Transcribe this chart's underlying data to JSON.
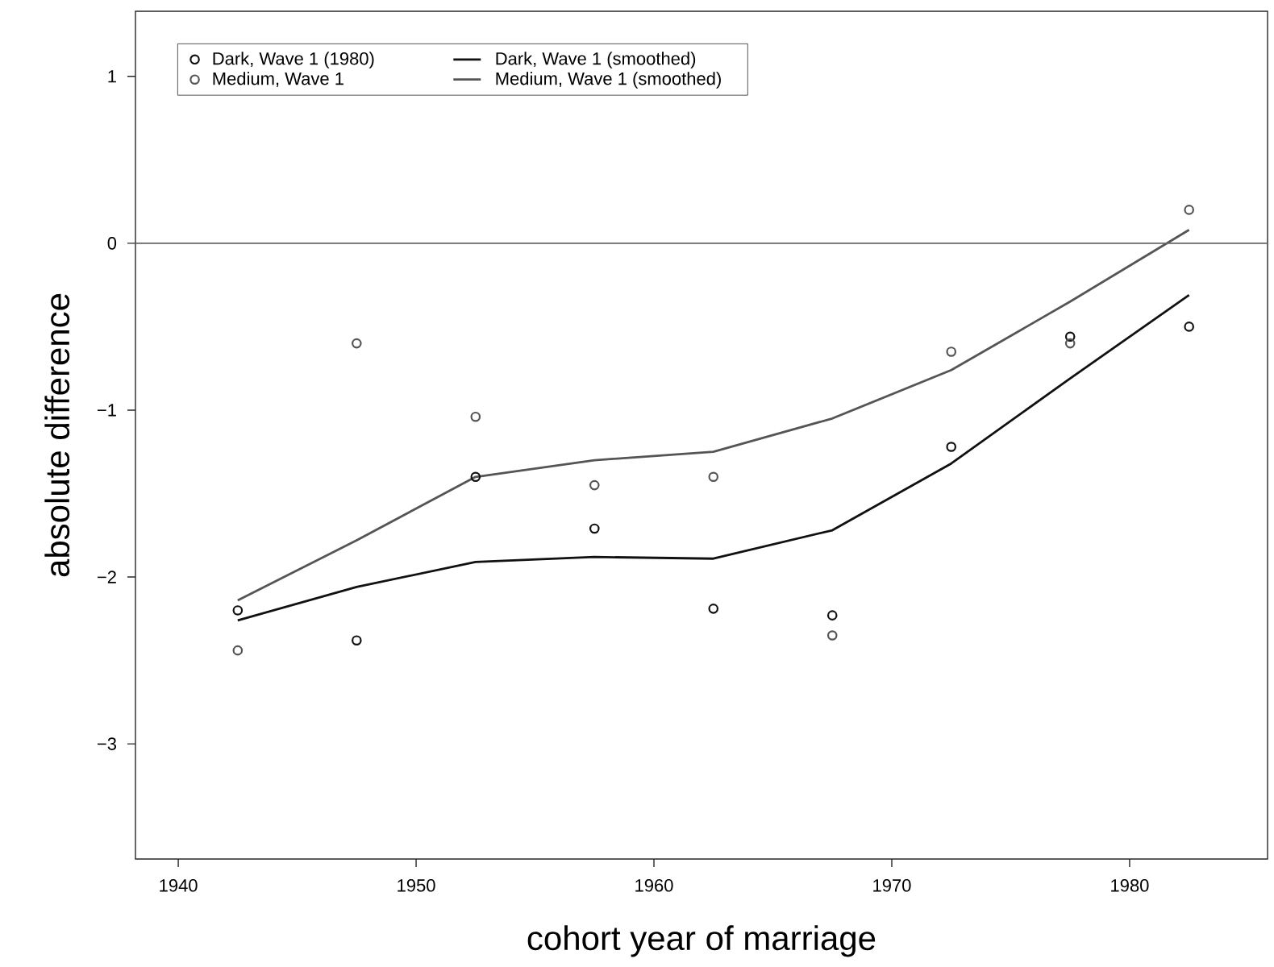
{
  "chart_data": {
    "type": "scatter",
    "xlabel": "cohort year of marriage",
    "ylabel": "absolute difference",
    "x": [
      1942.5,
      1947.5,
      1952.5,
      1957.5,
      1962.5,
      1967.5,
      1972.5,
      1977.5,
      1982.5
    ],
    "series": [
      {
        "name": "Dark, Wave 1 (1980)",
        "marker": "circle",
        "color": "#111111",
        "values": [
          -2.2,
          -2.38,
          -1.4,
          -1.71,
          -2.19,
          -2.23,
          -1.22,
          -0.56,
          -0.5
        ]
      },
      {
        "name": "Medium, Wave 1",
        "marker": "circle",
        "color": "#555555",
        "values": [
          -2.44,
          -0.6,
          -1.04,
          -1.45,
          -1.4,
          -2.35,
          -0.65,
          -0.6,
          0.2
        ]
      },
      {
        "name": "Dark, Wave 1 (smoothed)",
        "type": "line",
        "marker": "none",
        "color": "#111111",
        "values": [
          -2.26,
          -2.06,
          -1.91,
          -1.88,
          -1.89,
          -1.72,
          -1.32,
          -0.81,
          -0.31
        ]
      },
      {
        "name": "Medium, Wave 1 (smoothed)",
        "type": "line",
        "marker": "none",
        "color": "#555555",
        "values": [
          -2.14,
          -1.78,
          -1.4,
          -1.3,
          -1.25,
          -1.05,
          -0.76,
          -0.35,
          0.08
        ]
      }
    ],
    "xlim": [
      1938.2,
      1985.8
    ],
    "ylim": [
      -3.69,
      1.39
    ],
    "xticks": [
      1940,
      1950,
      1960,
      1970,
      1980
    ],
    "yticks": [
      {
        "value": -3,
        "label": "−3"
      },
      {
        "value": -2,
        "label": "−2"
      },
      {
        "value": -1,
        "label": "−1"
      },
      0,
      1
    ],
    "ref_lines": [
      {
        "axis": "y",
        "value": 0,
        "color": "#666666"
      }
    ],
    "legend": "top left",
    "grid": false
  }
}
